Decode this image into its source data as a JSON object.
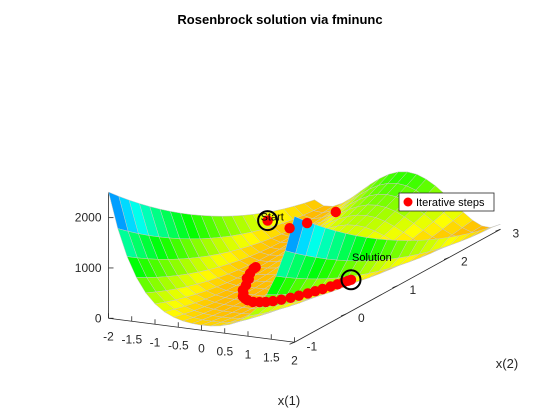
{
  "chart_data": {
    "type": "surface",
    "title": "Rosenbrock solution via fminunc",
    "surface": {
      "function": "100*(x2 - x1^2)^2 + (1 - x1)^2",
      "x1_range": [
        -2,
        2
      ],
      "x2_range": [
        -1,
        3
      ],
      "colormap": "hsv"
    },
    "xlabel": "x(1)",
    "ylabel": "x(2)",
    "zlabel": "",
    "xlim": [
      -2,
      2
    ],
    "ylim": [
      -1,
      3
    ],
    "zlim": [
      0,
      2500
    ],
    "x_ticks": [
      "-2",
      "-1.5",
      "-1",
      "-0.5",
      "0",
      "0.5",
      "1",
      "1.5",
      "2"
    ],
    "y_ticks": [
      "-1",
      "0",
      "1",
      "2",
      "3"
    ],
    "z_ticks": [
      "0",
      "1000",
      "2000"
    ],
    "legend": {
      "entries": [
        "Iterative steps"
      ],
      "placement": "right"
    },
    "annotations": [
      {
        "text": "Start",
        "x1": -1.9,
        "x2": 2
      },
      {
        "text": "Solution",
        "x1": 1,
        "x2": 1
      }
    ],
    "series": [
      {
        "name": "Iterative steps",
        "color": "#ff0000",
        "points": [
          {
            "x1": -1.9,
            "x2": 2.0
          },
          {
            "x1": -1.65,
            "x2": 2.2
          },
          {
            "x1": -1.55,
            "x2": 2.45
          },
          {
            "x1": -1.1,
            "x2": 2.6
          },
          {
            "x1": -1.05,
            "x2": 1.0
          },
          {
            "x1": -1.04,
            "x2": 0.95
          },
          {
            "x1": -0.95,
            "x2": 0.8
          },
          {
            "x1": -0.85,
            "x2": 0.65
          },
          {
            "x1": -0.8,
            "x2": 0.64
          },
          {
            "x1": -0.65,
            "x2": 0.45
          },
          {
            "x1": -0.55,
            "x2": 0.3
          },
          {
            "x1": -0.45,
            "x2": 0.22
          },
          {
            "x1": -0.35,
            "x2": 0.12
          },
          {
            "x1": -0.25,
            "x2": 0.07
          },
          {
            "x1": -0.15,
            "x2": 0.03
          },
          {
            "x1": 0.0,
            "x2": 0.0
          },
          {
            "x1": 0.12,
            "x2": 0.02
          },
          {
            "x1": 0.22,
            "x2": 0.05
          },
          {
            "x1": 0.32,
            "x2": 0.1
          },
          {
            "x1": 0.42,
            "x2": 0.17
          },
          {
            "x1": 0.52,
            "x2": 0.26
          },
          {
            "x1": 0.6,
            "x2": 0.35
          },
          {
            "x1": 0.68,
            "x2": 0.45
          },
          {
            "x1": 0.74,
            "x2": 0.54
          },
          {
            "x1": 0.8,
            "x2": 0.63
          },
          {
            "x1": 0.86,
            "x2": 0.73
          },
          {
            "x1": 0.91,
            "x2": 0.82
          },
          {
            "x1": 0.95,
            "x2": 0.9
          },
          {
            "x1": 0.98,
            "x2": 0.96
          },
          {
            "x1": 1.0,
            "x2": 1.0
          }
        ]
      }
    ]
  }
}
